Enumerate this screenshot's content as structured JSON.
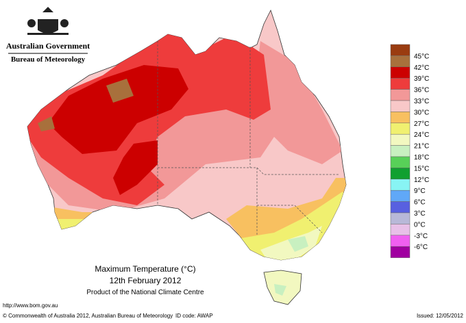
{
  "header": {
    "title": "Australian Government",
    "subtitle": "Bureau of Meteorology"
  },
  "map": {
    "title": "Maximum Temperature (°C)",
    "date": "12th February 2012",
    "product": "Product of the National Climate Centre"
  },
  "legend": {
    "labels": [
      "45°C",
      "42°C",
      "39°C",
      "36°C",
      "33°C",
      "30°C",
      "27°C",
      "24°C",
      "21°C",
      "18°C",
      "15°C",
      "12°C",
      "9°C",
      "6°C",
      "3°C",
      "0°C",
      "-3°C",
      "-6°C"
    ],
    "colors": [
      "#9a3c10",
      "#a8703c",
      "#cc0000",
      "#ee3c3c",
      "#f29898",
      "#f8c8c8",
      "#f8c060",
      "#f0f070",
      "#f2f8c0",
      "#c8f0c0",
      "#58d058",
      "#10a030",
      "#88f4f4",
      "#60a8f8",
      "#5860e0",
      "#b8b8d8",
      "#e8c0e8",
      "#f060f0",
      "#a000a0"
    ]
  },
  "footer": {
    "url": "http://www.bom.gov.au",
    "copyright": "© Commonwealth of Australia 2012, Australian Bureau of Meteorology",
    "id": "ID code: AWAP",
    "issued": "Issued: 12/05/2012"
  }
}
